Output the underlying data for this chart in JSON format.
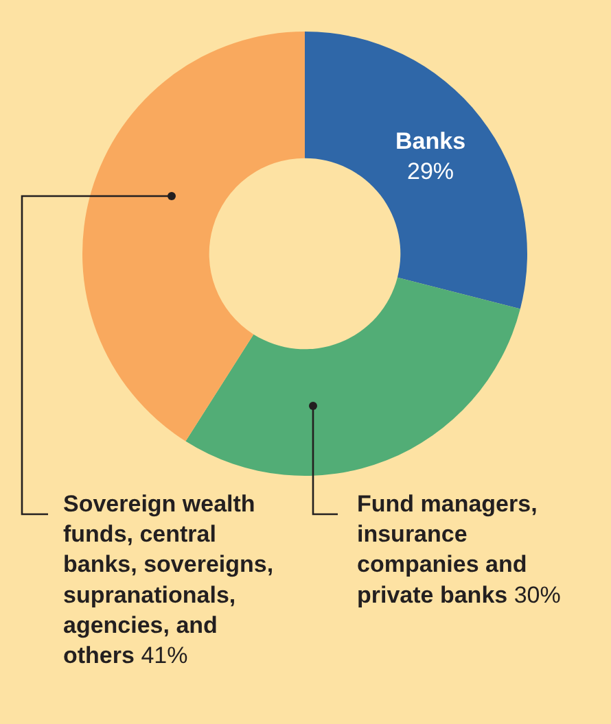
{
  "chart_data": {
    "type": "donut",
    "categories": [
      "Banks",
      "Fund managers, insurance companies and private banks",
      "Sovereign wealth funds, central banks, sovereigns, supranationals, agencies, and others"
    ],
    "values": [
      29,
      30,
      41
    ],
    "colors": [
      "#2f67a8",
      "#52ad76",
      "#f9a95e"
    ],
    "value_labels": [
      "29%",
      "30%",
      "41%"
    ],
    "legend": false
  }
}
